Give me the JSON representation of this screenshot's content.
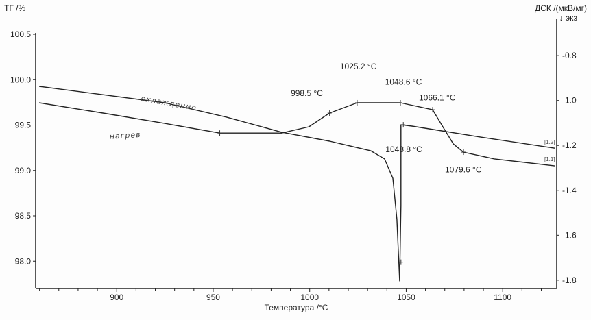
{
  "chart_data": {
    "type": "line",
    "title": "",
    "xlabel": "Температура /°C",
    "ylabel_left": "ТГ /%",
    "ylabel_right": "ДСК /(мкВ/мг)",
    "right_axis_note": "↓ экз",
    "xlim": [
      858,
      1128
    ],
    "ylim_left": [
      97.7,
      100.5
    ],
    "ylim_right": [
      -1.837,
      -0.705
    ],
    "x_ticks": [
      900,
      950,
      1000,
      1050,
      1100
    ],
    "y_ticks_left": [
      "100.5",
      "100.0",
      "99.5",
      "99.0",
      "98.5",
      "98.0"
    ],
    "y_ticks_right": [
      "-0.8",
      "-1.0",
      "-1.2",
      "-1.4",
      "-1.6",
      "-1.8"
    ],
    "grid": false,
    "series": [
      {
        "name": "[1.2]",
        "handwritten_label": "охлаждение",
        "axis": "right",
        "x": [
          859.8,
          892.9,
          924.9,
          956.9,
          985.4,
          1010.3,
          1031.7,
          1038.8,
          1043.1,
          1045.2,
          1046.6,
          1047.3,
          1047.3,
          1053.0,
          1088.6,
          1127.0
        ],
        "y": [
          -0.937,
          -0.974,
          -1.01,
          -1.074,
          -1.141,
          -1.181,
          -1.224,
          -1.26,
          -1.346,
          -1.529,
          -1.803,
          -1.468,
          -1.108,
          -1.114,
          -1.163,
          -1.212
        ]
      },
      {
        "name": "[1.1]",
        "handwritten_label": "нагрев",
        "axis": "right",
        "x": [
          859.8,
          892.9,
          924.9,
          953.4,
          985.4,
          999.6,
          1010.3,
          1024.6,
          1047.0,
          1063.7,
          1069.0,
          1074.4,
          1079.7,
          1095.7,
          1127.0
        ],
        "y": [
          -1.01,
          -1.056,
          -1.102,
          -1.145,
          -1.145,
          -1.117,
          -1.056,
          -1.01,
          -1.01,
          -1.041,
          -1.117,
          -1.193,
          -1.23,
          -1.26,
          -1.291
        ]
      }
    ],
    "annotations": [
      {
        "text": "998.5 °C",
        "x": 998.5,
        "y": -0.98
      },
      {
        "text": "1025.2 °C",
        "x": 1025.2,
        "y": -0.86
      },
      {
        "text": "1048.6 °C",
        "x": 1048.6,
        "y": -0.93
      },
      {
        "text": "1066.1 °C",
        "x": 1066.1,
        "y": -1.0
      },
      {
        "text": "1048.8 °C",
        "x": 1048.8,
        "y": -1.23
      },
      {
        "text": "1079.6 °C",
        "x": 1079.6,
        "y": -1.32
      }
    ],
    "markers": [
      {
        "series": 1,
        "x": 953.4,
        "y": -1.145
      },
      {
        "series": 1,
        "x": 1010.3,
        "y": -1.056
      },
      {
        "series": 1,
        "x": 1024.6,
        "y": -1.01
      },
      {
        "series": 1,
        "x": 1047.0,
        "y": -1.01
      },
      {
        "series": 1,
        "x": 1063.7,
        "y": -1.041
      },
      {
        "series": 1,
        "x": 1079.7,
        "y": -1.23
      },
      {
        "series": 0,
        "x": 1047.3,
        "y": -1.72
      },
      {
        "series": 0,
        "x": 1048.5,
        "y": -1.108
      }
    ]
  }
}
